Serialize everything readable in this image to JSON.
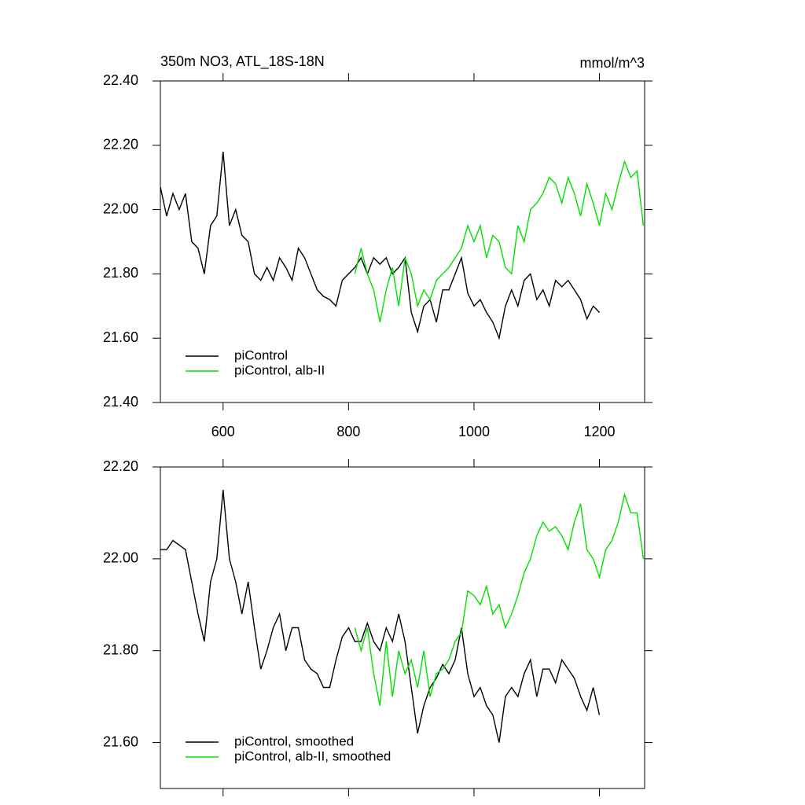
{
  "chart_data": [
    {
      "type": "line",
      "title": "350m NO3, ATL_18S-18N",
      "units": "mmol/m^3",
      "xlim": [
        500,
        1272
      ],
      "xticks": [
        600,
        800,
        1000,
        1200
      ],
      "show_xtick_labels": true,
      "ylim": [
        21.4,
        22.4
      ],
      "yticks": [
        {
          "value": 21.4,
          "label": "21.40"
        },
        {
          "value": 21.6,
          "label": "21.60"
        },
        {
          "value": 21.8,
          "label": "21.80"
        },
        {
          "value": 22.0,
          "label": "22.00"
        },
        {
          "value": 22.2,
          "label": "22.20"
        },
        {
          "value": 22.4,
          "label": "22.40"
        }
      ],
      "legend": "lower left",
      "series": [
        {
          "name": "piControl",
          "color": "#000000",
          "x": [
            500,
            510,
            520,
            530,
            540,
            550,
            560,
            570,
            580,
            590,
            600,
            610,
            620,
            630,
            640,
            650,
            660,
            670,
            680,
            690,
            700,
            710,
            720,
            730,
            740,
            750,
            760,
            770,
            780,
            790,
            800,
            810,
            820,
            830,
            840,
            850,
            860,
            870,
            880,
            890,
            900,
            910,
            920,
            930,
            940,
            950,
            960,
            970,
            980,
            990,
            1000,
            1010,
            1020,
            1030,
            1040,
            1050,
            1060,
            1070,
            1080,
            1090,
            1100,
            1110,
            1120,
            1130,
            1140,
            1150,
            1160,
            1170,
            1180,
            1190,
            1200
          ],
          "values": [
            22.07,
            21.98,
            22.05,
            22.0,
            22.05,
            21.9,
            21.88,
            21.8,
            21.95,
            21.98,
            22.18,
            21.95,
            22.0,
            21.92,
            21.9,
            21.8,
            21.78,
            21.82,
            21.78,
            21.85,
            21.82,
            21.78,
            21.88,
            21.85,
            21.8,
            21.75,
            21.73,
            21.72,
            21.7,
            21.78,
            21.8,
            21.82,
            21.85,
            21.8,
            21.85,
            21.83,
            21.85,
            21.8,
            21.82,
            21.85,
            21.68,
            21.62,
            21.7,
            21.72,
            21.65,
            21.75,
            21.75,
            21.8,
            21.85,
            21.74,
            21.7,
            21.72,
            21.68,
            21.65,
            21.6,
            21.7,
            21.75,
            21.7,
            21.78,
            21.8,
            21.72,
            21.75,
            21.7,
            21.78,
            21.76,
            21.78,
            21.75,
            21.72,
            21.66,
            21.7,
            21.68
          ]
        },
        {
          "name": "piControl, alb-II",
          "color": "#00e000",
          "x": [
            810,
            820,
            830,
            840,
            850,
            860,
            870,
            880,
            890,
            900,
            910,
            920,
            930,
            940,
            950,
            960,
            970,
            980,
            990,
            1000,
            1010,
            1020,
            1030,
            1040,
            1050,
            1060,
            1070,
            1080,
            1090,
            1100,
            1110,
            1120,
            1130,
            1140,
            1150,
            1160,
            1170,
            1180,
            1190,
            1200,
            1210,
            1220,
            1230,
            1240,
            1250,
            1260,
            1270
          ],
          "values": [
            21.8,
            21.88,
            21.8,
            21.75,
            21.65,
            21.75,
            21.82,
            21.7,
            21.85,
            21.8,
            21.7,
            21.75,
            21.72,
            21.78,
            21.8,
            21.82,
            21.85,
            21.88,
            21.95,
            21.9,
            21.95,
            21.85,
            21.92,
            21.9,
            21.82,
            21.8,
            21.95,
            21.9,
            22.0,
            22.02,
            22.05,
            22.1,
            22.08,
            22.02,
            22.1,
            22.05,
            21.98,
            22.08,
            22.02,
            21.95,
            22.05,
            22.0,
            22.08,
            22.15,
            22.1,
            22.12,
            21.95
          ]
        }
      ]
    },
    {
      "type": "line",
      "xlim": [
        500,
        1272
      ],
      "xticks": [
        600,
        800,
        1000,
        1200
      ],
      "show_xtick_labels": false,
      "ylim": [
        21.5,
        22.2
      ],
      "yticks": [
        {
          "value": 21.6,
          "label": "21.60"
        },
        {
          "value": 21.8,
          "label": "21.80"
        },
        {
          "value": 22.0,
          "label": "22.00"
        },
        {
          "value": 22.2,
          "label": "22.20"
        }
      ],
      "legend": "lower left",
      "series": [
        {
          "name": "piControl, smoothed",
          "color": "#000000",
          "x": [
            500,
            510,
            520,
            530,
            540,
            550,
            560,
            570,
            580,
            590,
            600,
            610,
            620,
            630,
            640,
            650,
            660,
            670,
            680,
            690,
            700,
            710,
            720,
            730,
            740,
            750,
            760,
            770,
            780,
            790,
            800,
            810,
            820,
            830,
            840,
            850,
            860,
            870,
            880,
            890,
            900,
            910,
            920,
            930,
            940,
            950,
            960,
            970,
            980,
            990,
            1000,
            1010,
            1020,
            1030,
            1040,
            1050,
            1060,
            1070,
            1080,
            1090,
            1100,
            1110,
            1120,
            1130,
            1140,
            1150,
            1160,
            1170,
            1180,
            1190,
            1200
          ],
          "values": [
            22.02,
            22.02,
            22.04,
            22.03,
            22.02,
            21.95,
            21.88,
            21.82,
            21.95,
            22.0,
            22.15,
            22.0,
            21.95,
            21.88,
            21.95,
            21.85,
            21.76,
            21.8,
            21.85,
            21.88,
            21.8,
            21.85,
            21.85,
            21.78,
            21.76,
            21.75,
            21.72,
            21.72,
            21.78,
            21.83,
            21.85,
            21.82,
            21.82,
            21.86,
            21.82,
            21.8,
            21.85,
            21.82,
            21.88,
            21.82,
            21.72,
            21.62,
            21.68,
            21.72,
            21.74,
            21.77,
            21.75,
            21.78,
            21.85,
            21.75,
            21.7,
            21.72,
            21.68,
            21.66,
            21.6,
            21.7,
            21.72,
            21.7,
            21.75,
            21.78,
            21.7,
            21.76,
            21.76,
            21.73,
            21.78,
            21.76,
            21.74,
            21.7,
            21.67,
            21.72,
            21.66
          ]
        },
        {
          "name": "piControl, alb-II, smoothed",
          "color": "#00e000",
          "x": [
            810,
            820,
            830,
            840,
            850,
            860,
            870,
            880,
            890,
            900,
            910,
            920,
            930,
            940,
            950,
            960,
            970,
            980,
            990,
            1000,
            1010,
            1020,
            1030,
            1040,
            1050,
            1060,
            1070,
            1080,
            1090,
            1100,
            1110,
            1120,
            1130,
            1140,
            1150,
            1160,
            1170,
            1180,
            1190,
            1200,
            1210,
            1220,
            1230,
            1240,
            1250,
            1260,
            1270
          ],
          "values": [
            21.85,
            21.8,
            21.85,
            21.75,
            21.68,
            21.82,
            21.7,
            21.8,
            21.75,
            21.78,
            21.72,
            21.8,
            21.7,
            21.75,
            21.76,
            21.78,
            21.82,
            21.84,
            21.93,
            21.92,
            21.9,
            21.94,
            21.88,
            21.9,
            21.85,
            21.88,
            21.92,
            21.97,
            22.0,
            22.05,
            22.08,
            22.06,
            22.07,
            22.05,
            22.02,
            22.08,
            22.12,
            22.02,
            22.0,
            21.96,
            22.02,
            22.04,
            22.08,
            22.14,
            22.1,
            22.1,
            22.0
          ]
        }
      ]
    }
  ]
}
